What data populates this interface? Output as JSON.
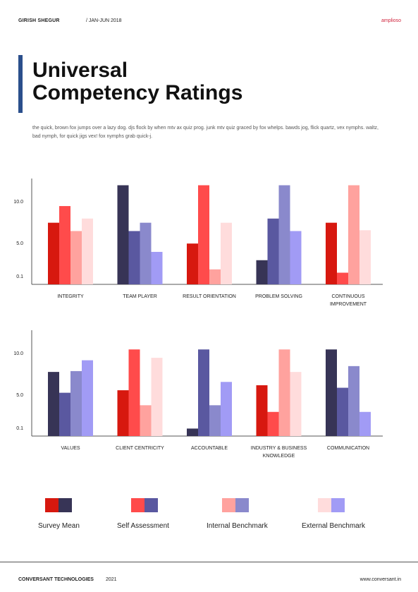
{
  "header": {
    "author": "GIRISH SHEGUR",
    "period": "/ JAN-JUN 2018",
    "brand": "amplioso"
  },
  "title": {
    "line1": "Universal",
    "line2": "Competency Ratings"
  },
  "description": "the quick, brown fox jumps over a lazy dog. djs flock by when mtv ax quiz prog. junk mtv quiz graced by fox whelps. bawds jog, flick quartz, vex nymphs. waltz, bad nymph, for quick jigs vex! fox nymphs grab quick-j.",
  "colors": {
    "red": [
      "#d7180f",
      "#ff4b4b",
      "#ffa29e",
      "#ffdcdc"
    ],
    "blue": [
      "#373456",
      "#5a58a0",
      "#8a89cc",
      "#a19bf5"
    ]
  },
  "chart_data": [
    {
      "type": "bar",
      "yticks": [
        "10.0",
        "5.0",
        "0.1"
      ],
      "ylim": [
        0.1,
        12.3
      ],
      "series": [
        {
          "name": "Survey Mean",
          "values": [
            7.5,
            12.0,
            5.0,
            3.0,
            7.5
          ]
        },
        {
          "name": "Self Assessment",
          "values": [
            9.5,
            6.5,
            12.0,
            8.0,
            1.5
          ]
        },
        {
          "name": "Internal Benchmark",
          "values": [
            6.5,
            7.5,
            1.9,
            12.0,
            12.0
          ]
        },
        {
          "name": "External Benchmark",
          "values": [
            8.0,
            4.0,
            7.5,
            6.5,
            6.6
          ]
        }
      ],
      "series_colors": [
        [
          "red",
          "blue",
          "red",
          "blue",
          "red"
        ],
        [
          "red",
          "blue",
          "red",
          "blue",
          "red"
        ],
        [
          "red",
          "blue",
          "red",
          "blue",
          "red"
        ],
        [
          "red",
          "blue",
          "red",
          "blue",
          "red"
        ]
      ],
      "categories": [
        [
          "INTEGRITY"
        ],
        [
          "TEAM PLAYER"
        ],
        [
          "RESULT ORIENTATION"
        ],
        [
          "PROBLEM SOLVING"
        ],
        [
          "CONTINUOUS",
          "IMPROVEMENT"
        ]
      ]
    },
    {
      "type": "bar",
      "yticks": [
        "10.0",
        "5.0",
        "0.1"
      ],
      "ylim": [
        0.1,
        12.3
      ],
      "series": [
        {
          "name": "Survey Mean",
          "values": [
            7.8,
            5.6,
            1.0,
            6.2,
            10.5
          ]
        },
        {
          "name": "Self Assessment",
          "values": [
            5.3,
            10.5,
            10.5,
            3.0,
            5.9
          ]
        },
        {
          "name": "Internal Benchmark",
          "values": [
            7.9,
            3.8,
            3.8,
            10.5,
            8.5
          ]
        },
        {
          "name": "External Benchmark",
          "values": [
            9.2,
            9.5,
            6.6,
            7.8,
            3.0
          ]
        }
      ],
      "series_colors": [
        [
          "blue",
          "red",
          "blue",
          "red",
          "blue"
        ],
        [
          "blue",
          "red",
          "blue",
          "red",
          "blue"
        ],
        [
          "blue",
          "red",
          "blue",
          "red",
          "blue"
        ],
        [
          "blue",
          "red",
          "blue",
          "red",
          "blue"
        ]
      ],
      "categories": [
        [
          "VALUES"
        ],
        [
          "CLIENT CENTRICITY"
        ],
        [
          "ACCOUNTABLE"
        ],
        [
          "INDUSTRY & BUSINESS",
          "KNOWLEDGE"
        ],
        [
          "COMMUNICATION"
        ]
      ]
    }
  ],
  "legend": [
    {
      "label": "Survey Mean"
    },
    {
      "label": "Self Assessment"
    },
    {
      "label": "Internal Benchmark"
    },
    {
      "label": "External Benchmark"
    }
  ],
  "footer": {
    "company": "CONVERSANT TECHNOLOGIES",
    "year": "2021",
    "website": "www.conversant.in"
  }
}
